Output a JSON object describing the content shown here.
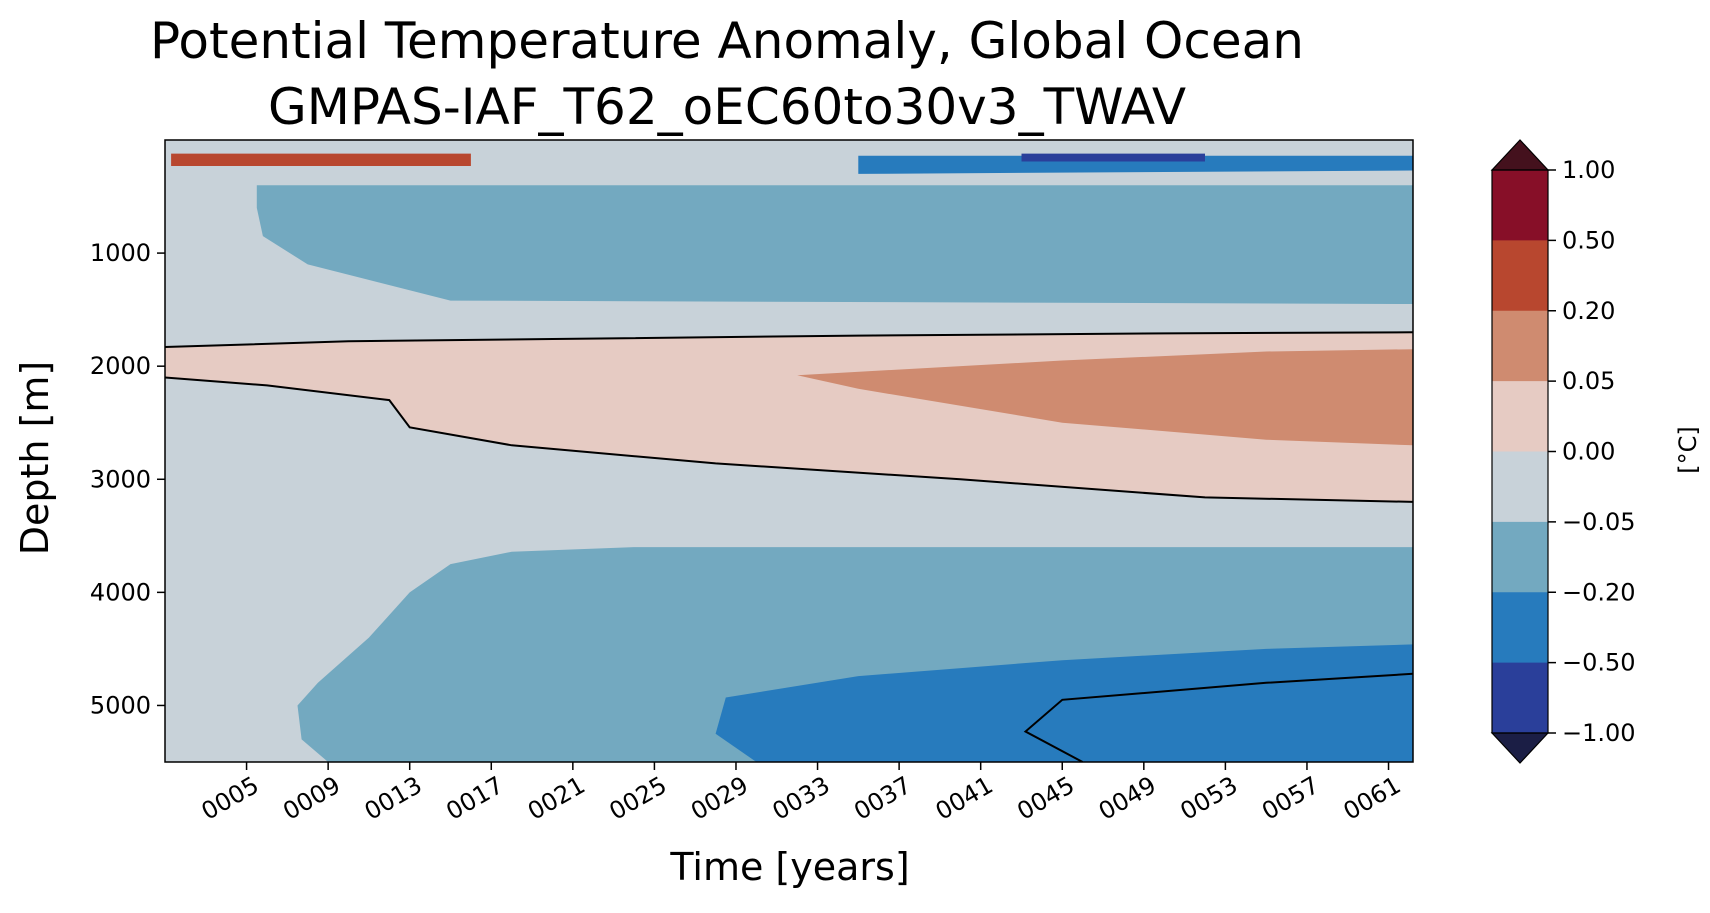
{
  "chart_data": {
    "type": "heatmap",
    "title": "Potential Temperature Anomaly, Global Ocean",
    "subtitle": "GMPAS-IAF_T62_oEC60to30v3_TWAV",
    "xlabel": "Time [years]",
    "ylabel": "Depth [m]",
    "xlim": [
      1,
      62.2
    ],
    "ylim": [
      5500,
      0
    ],
    "x_ticks": [
      {
        "value": 5,
        "label": "0005"
      },
      {
        "value": 9,
        "label": "0009"
      },
      {
        "value": 13,
        "label": "0013"
      },
      {
        "value": 17,
        "label": "0017"
      },
      {
        "value": 21,
        "label": "0021"
      },
      {
        "value": 25,
        "label": "0025"
      },
      {
        "value": 29,
        "label": "0029"
      },
      {
        "value": 33,
        "label": "0033"
      },
      {
        "value": 37,
        "label": "0037"
      },
      {
        "value": 41,
        "label": "0041"
      },
      {
        "value": 45,
        "label": "0045"
      },
      {
        "value": 49,
        "label": "0049"
      },
      {
        "value": 53,
        "label": "0053"
      },
      {
        "value": 57,
        "label": "0057"
      },
      {
        "value": 61,
        "label": "0061"
      }
    ],
    "y_ticks": [
      {
        "value": 1000,
        "label": "1000"
      },
      {
        "value": 2000,
        "label": "2000"
      },
      {
        "value": 3000,
        "label": "3000"
      },
      {
        "value": 4000,
        "label": "4000"
      },
      {
        "value": 5000,
        "label": "5000"
      }
    ],
    "colorbar": {
      "unit_label": "[°C]",
      "ticks": [
        {
          "value": 1.0,
          "label": "1.00"
        },
        {
          "value": 0.5,
          "label": "0.50"
        },
        {
          "value": 0.2,
          "label": "0.20"
        },
        {
          "value": 0.05,
          "label": "0.05"
        },
        {
          "value": 0.0,
          "label": "0.00"
        },
        {
          "value": -0.05,
          "label": "−0.05"
        },
        {
          "value": -0.2,
          "label": "−0.20"
        },
        {
          "value": -0.5,
          "label": "−0.50"
        },
        {
          "value": -1.0,
          "label": "−1.00"
        }
      ],
      "levels": [
        {
          "from": 0.5,
          "to": 1.0,
          "color": "#870f28"
        },
        {
          "from": 0.2,
          "to": 0.5,
          "color": "#b8472f"
        },
        {
          "from": 0.05,
          "to": 0.2,
          "color": "#cf8b70"
        },
        {
          "from": 0.0,
          "to": 0.05,
          "color": "#e6cbc3"
        },
        {
          "from": -0.05,
          "to": 0.0,
          "color": "#c8d2d9"
        },
        {
          "from": -0.2,
          "to": -0.05,
          "color": "#73a9c0"
        },
        {
          "from": -0.5,
          "to": -0.2,
          "color": "#277bbd"
        },
        {
          "from": -1.0,
          "to": -0.5,
          "color": "#2a3f9a"
        }
      ],
      "over_color": "#44111d",
      "under_color": "#1b1e45"
    },
    "regions": [
      {
        "name": "upper-ocean-negative-anomaly",
        "value_range": [
          -0.2,
          -0.05
        ],
        "color": "#73a9c0",
        "points": [
          [
            5.5,
            400
          ],
          [
            62.2,
            400
          ],
          [
            62.2,
            1450
          ],
          [
            15,
            1420
          ],
          [
            8,
            1100
          ],
          [
            5.8,
            850
          ],
          [
            5.5,
            600
          ]
        ]
      },
      {
        "name": "mid-depth-positive-anomaly",
        "value_range": [
          0.0,
          0.05
        ],
        "color": "#e6cbc3",
        "points": [
          [
            1,
            1830
          ],
          [
            10,
            1780
          ],
          [
            20,
            1760
          ],
          [
            35,
            1730
          ],
          [
            50,
            1710
          ],
          [
            62.2,
            1700
          ],
          [
            62.2,
            3200
          ],
          [
            52,
            3160
          ],
          [
            40,
            3000
          ],
          [
            28,
            2860
          ],
          [
            18,
            2700
          ],
          [
            13,
            2540
          ],
          [
            12,
            2300
          ],
          [
            6,
            2170
          ],
          [
            1,
            2100
          ]
        ]
      },
      {
        "name": "mid-depth-warm-tongue",
        "value_range": [
          0.05,
          0.2
        ],
        "color": "#cf8b70",
        "points": [
          [
            32,
            2080
          ],
          [
            45,
            1950
          ],
          [
            55,
            1870
          ],
          [
            62.2,
            1850
          ],
          [
            62.2,
            2700
          ],
          [
            55,
            2650
          ],
          [
            45,
            2500
          ],
          [
            35,
            2200
          ]
        ]
      },
      {
        "name": "deep-negative-anomaly",
        "value_range": [
          -0.2,
          -0.05
        ],
        "color": "#73a9c0",
        "points": [
          [
            13,
            4000
          ],
          [
            15,
            3750
          ],
          [
            18,
            3640
          ],
          [
            24,
            3600
          ],
          [
            62.2,
            3600
          ],
          [
            62.2,
            5500
          ],
          [
            9,
            5500
          ],
          [
            7.7,
            5300
          ],
          [
            7.5,
            5000
          ],
          [
            8.5,
            4800
          ],
          [
            11,
            4400
          ]
        ]
      },
      {
        "name": "abyssal-negative-anomaly",
        "value_range": [
          -0.5,
          -0.2
        ],
        "color": "#277bbd",
        "points": [
          [
            28.5,
            4930
          ],
          [
            35,
            4740
          ],
          [
            45,
            4600
          ],
          [
            55,
            4500
          ],
          [
            62.2,
            4460
          ],
          [
            62.2,
            5500
          ],
          [
            30,
            5500
          ],
          [
            28,
            5250
          ]
        ]
      },
      {
        "name": "thermocline-negative-band",
        "value_range": [
          -0.5,
          -0.2
        ],
        "color": "#277bbd",
        "points": [
          [
            35,
            140
          ],
          [
            62.2,
            140
          ],
          [
            62.2,
            270
          ],
          [
            35,
            300
          ]
        ]
      },
      {
        "name": "thermocline-strong-negative-core",
        "value_range": [
          -1.0,
          -0.5
        ],
        "color": "#2a3f9a",
        "points": [
          [
            43,
            120
          ],
          [
            52,
            120
          ],
          [
            52,
            190
          ],
          [
            43,
            190
          ]
        ]
      },
      {
        "name": "surface-warm-band",
        "value_range": [
          0.2,
          0.5
        ],
        "color": "#b8472f",
        "points": [
          [
            1.3,
            120
          ],
          [
            16,
            120
          ],
          [
            16,
            230
          ],
          [
            1.3,
            230
          ]
        ]
      }
    ]
  }
}
